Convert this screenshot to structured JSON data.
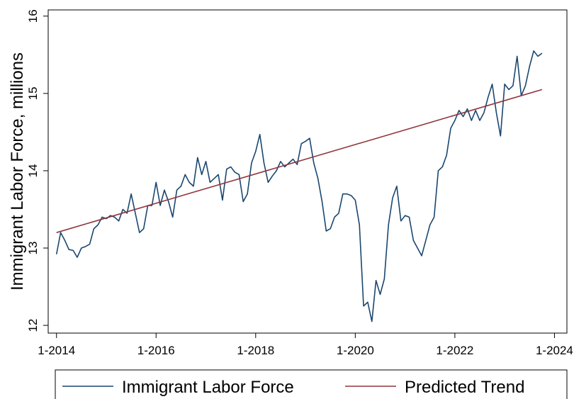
{
  "chart_data": {
    "type": "line",
    "y_label": "Immigrant Labor Force, millions",
    "x": [
      "2014-01",
      "2014-02",
      "2014-03",
      "2014-04",
      "2014-05",
      "2014-06",
      "2014-07",
      "2014-08",
      "2014-09",
      "2014-10",
      "2014-11",
      "2014-12",
      "2015-01",
      "2015-02",
      "2015-03",
      "2015-04",
      "2015-05",
      "2015-06",
      "2015-07",
      "2015-08",
      "2015-09",
      "2015-10",
      "2015-11",
      "2015-12",
      "2016-01",
      "2016-02",
      "2016-03",
      "2016-04",
      "2016-05",
      "2016-06",
      "2016-07",
      "2016-08",
      "2016-09",
      "2016-10",
      "2016-11",
      "2016-12",
      "2017-01",
      "2017-02",
      "2017-03",
      "2017-04",
      "2017-05",
      "2017-06",
      "2017-07",
      "2017-08",
      "2017-09",
      "2017-10",
      "2017-11",
      "2017-12",
      "2018-01",
      "2018-02",
      "2018-03",
      "2018-04",
      "2018-05",
      "2018-06",
      "2018-07",
      "2018-08",
      "2018-09",
      "2018-10",
      "2018-11",
      "2018-12",
      "2019-01",
      "2019-02",
      "2019-03",
      "2019-04",
      "2019-05",
      "2019-06",
      "2019-07",
      "2019-08",
      "2019-09",
      "2019-10",
      "2019-11",
      "2019-12",
      "2020-01",
      "2020-02",
      "2020-03",
      "2020-04",
      "2020-05",
      "2020-06",
      "2020-07",
      "2020-08",
      "2020-09",
      "2020-10",
      "2020-11",
      "2020-12",
      "2021-01",
      "2021-02",
      "2021-03",
      "2021-04",
      "2021-05",
      "2021-06",
      "2021-07",
      "2021-08",
      "2021-09",
      "2021-10",
      "2021-11",
      "2021-12",
      "2022-01",
      "2022-02",
      "2022-03",
      "2022-04",
      "2022-05",
      "2022-06",
      "2022-07",
      "2022-08",
      "2022-09",
      "2022-10",
      "2022-11",
      "2022-12",
      "2023-01",
      "2023-02",
      "2023-03",
      "2023-04",
      "2023-05",
      "2023-06",
      "2023-07",
      "2023-08",
      "2023-09",
      "2023-10"
    ],
    "series": [
      {
        "name": "Immigrant Labor Force",
        "color": "#1a476f",
        "values": [
          12.92,
          13.2,
          13.1,
          12.98,
          12.97,
          12.88,
          13.0,
          13.02,
          13.05,
          13.25,
          13.3,
          13.4,
          13.38,
          13.42,
          13.4,
          13.35,
          13.5,
          13.45,
          13.7,
          13.45,
          13.2,
          13.25,
          13.55,
          13.55,
          13.85,
          13.55,
          13.75,
          13.6,
          13.4,
          13.75,
          13.8,
          13.95,
          13.85,
          13.8,
          14.17,
          13.95,
          14.12,
          13.85,
          13.9,
          13.95,
          13.62,
          14.02,
          14.05,
          13.98,
          13.95,
          13.6,
          13.7,
          14.1,
          14.25,
          14.47,
          14.1,
          13.85,
          13.93,
          14.0,
          14.12,
          14.05,
          14.1,
          14.15,
          14.08,
          14.35,
          14.38,
          14.42,
          14.1,
          13.9,
          13.6,
          13.22,
          13.25,
          13.4,
          13.45,
          13.7,
          13.7,
          13.68,
          13.62,
          13.3,
          12.25,
          12.3,
          12.05,
          12.58,
          12.4,
          12.6,
          13.3,
          13.65,
          13.8,
          13.35,
          13.42,
          13.4,
          13.1,
          13.0,
          12.9,
          13.1,
          13.3,
          13.4,
          14.0,
          14.05,
          14.2,
          14.55,
          14.65,
          14.78,
          14.7,
          14.8,
          14.65,
          14.78,
          14.65,
          14.75,
          14.95,
          15.12,
          14.75,
          14.45,
          15.12,
          15.05,
          15.1,
          15.48,
          14.97,
          15.1,
          15.35,
          15.55,
          15.48,
          15.52
        ]
      },
      {
        "name": "Predicted Trend",
        "color": "#90353b",
        "x": [
          "2014-01",
          "2023-10"
        ],
        "values": [
          13.2,
          15.05
        ]
      }
    ],
    "xlim": [
      "2013-11",
      "2024-04"
    ],
    "xticks": [
      {
        "value": "2014-01",
        "label": "1-2014"
      },
      {
        "value": "2016-01",
        "label": "1-2016"
      },
      {
        "value": "2018-01",
        "label": "1-2018"
      },
      {
        "value": "2020-01",
        "label": "1-2020"
      },
      {
        "value": "2022-01",
        "label": "1-2022"
      },
      {
        "value": "2024-01",
        "label": "1-2024"
      }
    ],
    "ylim": [
      11.9,
      16.08
    ],
    "yticks": [
      12,
      13,
      14,
      15,
      16
    ],
    "legend": "bottom"
  }
}
